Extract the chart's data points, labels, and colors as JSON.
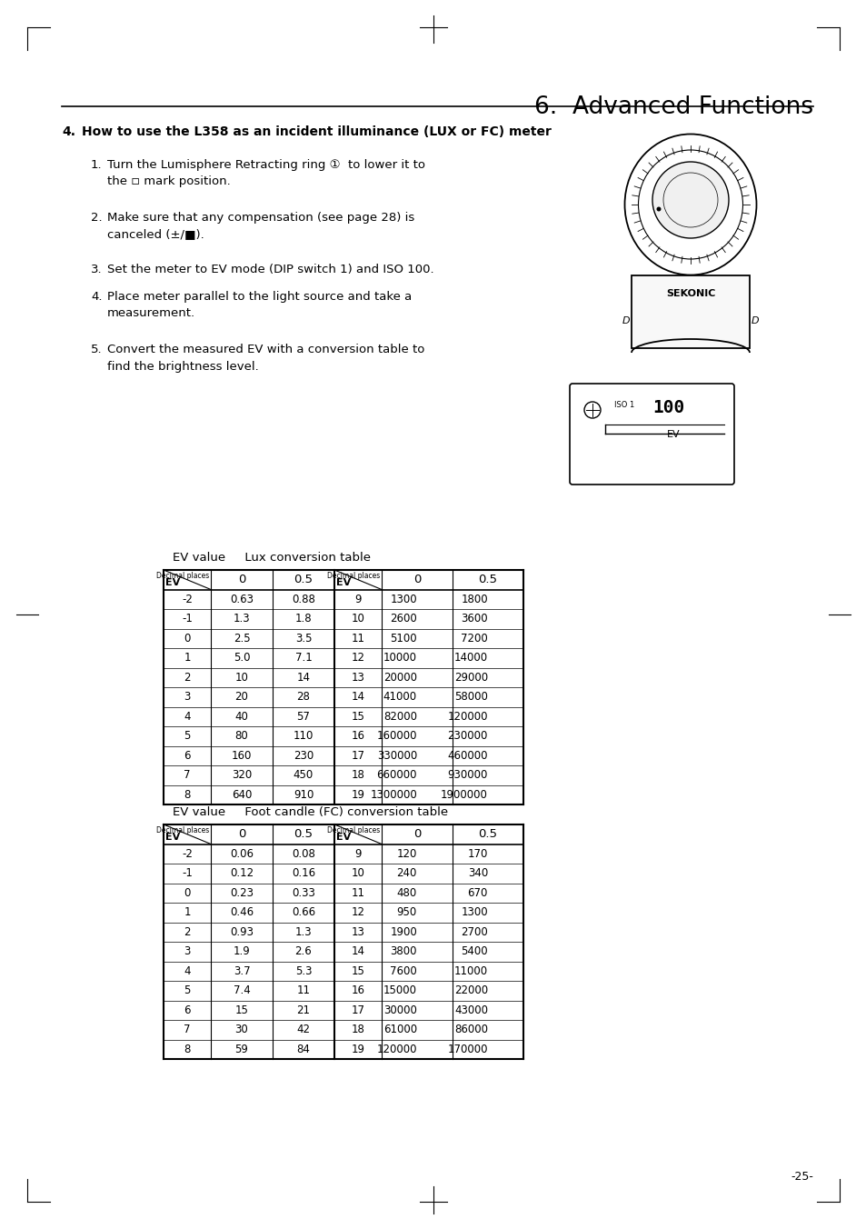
{
  "title": "6.  Advanced Functions",
  "section_num": "4.",
  "section_text": "How to use the L358 as an incident illuminance (LUX or FC) meter",
  "step1_num": "1.",
  "step1_text": "Turn the Lumisphere Retracting ring ①  to lower it to\nthe ◽ mark position.",
  "step2_num": "2.",
  "step2_text": "Make sure that any compensation (see page 28) is\ncanceled (±/■).",
  "step3_num": "3.",
  "step3_text": "Set the meter to EV mode (DIP switch 1) and ISO 100.",
  "step4_num": "4.",
  "step4_text": "Place meter parallel to the light source and take a\nmeasurement.",
  "step5_num": "5.",
  "step5_text": "Convert the measured EV with a conversion table to\nfind the brightness level.",
  "lux_table_title": "EV value     Lux conversion table",
  "fc_table_title": "EV value     Foot candle (FC) conversion table",
  "lux_left_ev": [
    "-2",
    "-1",
    "0",
    "1",
    "2",
    "3",
    "4",
    "5",
    "6",
    "7",
    "8"
  ],
  "lux_left_0": [
    "0.63",
    "1.3",
    "2.5",
    "5.0",
    "10",
    "20",
    "40",
    "80",
    "160",
    "320",
    "640"
  ],
  "lux_left_05": [
    "0.88",
    "1.8",
    "3.5",
    "7.1",
    "14",
    "28",
    "57",
    "110",
    "230",
    "450",
    "910"
  ],
  "lux_right_ev": [
    "9",
    "10",
    "11",
    "12",
    "13",
    "14",
    "15",
    "16",
    "17",
    "18",
    "19"
  ],
  "lux_right_0": [
    "1300",
    "2600",
    "5100",
    "10000",
    "20000",
    "41000",
    "82000",
    "160000",
    "330000",
    "660000",
    "1300000"
  ],
  "lux_right_05": [
    "1800",
    "3600",
    "7200",
    "14000",
    "29000",
    "58000",
    "120000",
    "230000",
    "460000",
    "930000",
    "1900000"
  ],
  "fc_left_ev": [
    "-2",
    "-1",
    "0",
    "1",
    "2",
    "3",
    "4",
    "5",
    "6",
    "7",
    "8"
  ],
  "fc_left_0": [
    "0.06",
    "0.12",
    "0.23",
    "0.46",
    "0.93",
    "1.9",
    "3.7",
    "7.4",
    "15",
    "30",
    "59"
  ],
  "fc_left_05": [
    "0.08",
    "0.16",
    "0.33",
    "0.66",
    "1.3",
    "2.6",
    "5.3",
    "11",
    "21",
    "42",
    "84"
  ],
  "fc_right_ev": [
    "9",
    "10",
    "11",
    "12",
    "13",
    "14",
    "15",
    "16",
    "17",
    "18",
    "19"
  ],
  "fc_right_0": [
    "120",
    "240",
    "480",
    "950",
    "1900",
    "3800",
    "7600",
    "15000",
    "30000",
    "61000",
    "120000"
  ],
  "fc_right_05": [
    "170",
    "340",
    "670",
    "1300",
    "2700",
    "5400",
    "11000",
    "22000",
    "43000",
    "86000",
    "170000"
  ],
  "page_num": "-25-",
  "bg_color": "#ffffff"
}
